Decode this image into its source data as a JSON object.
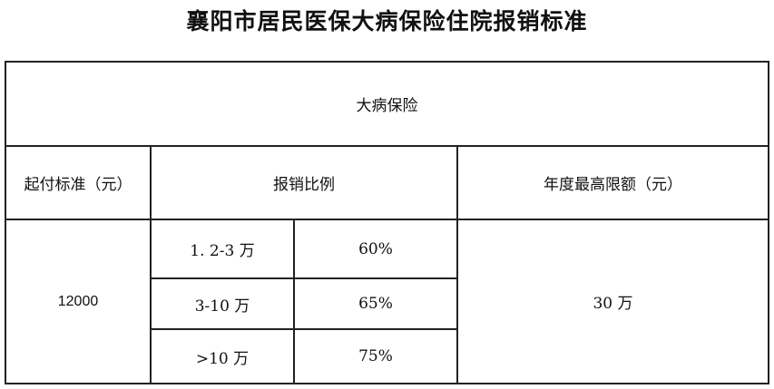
{
  "title": "襄阳市居民医保大病保险住院报销标准",
  "table": {
    "section_header": "大病保险",
    "headers": {
      "deductible": "起付标准（元）",
      "ratio": "报销比例",
      "annual_cap": "年度最高限额（元）"
    },
    "deductible_value": "12000",
    "annual_cap_value": "30 万",
    "tiers": [
      {
        "range": "1. 2-3 万",
        "ratio": "60%"
      },
      {
        "range": "3-10 万",
        "ratio": "65%"
      },
      {
        "range": ">10 万",
        "ratio": "75%"
      }
    ]
  }
}
